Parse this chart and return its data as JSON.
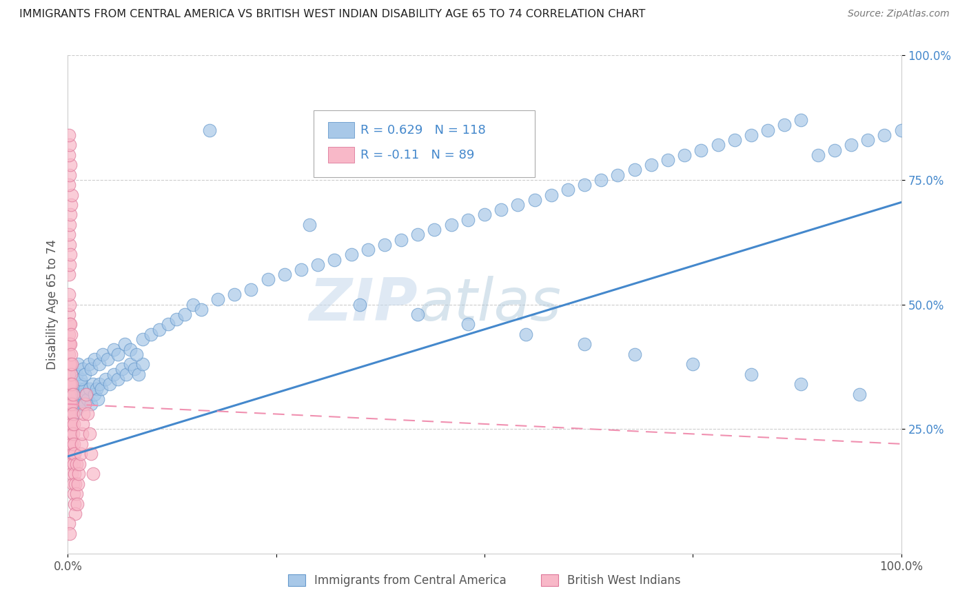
{
  "title": "IMMIGRANTS FROM CENTRAL AMERICA VS BRITISH WEST INDIAN DISABILITY AGE 65 TO 74 CORRELATION CHART",
  "source": "Source: ZipAtlas.com",
  "ylabel": "Disability Age 65 to 74",
  "watermark": "ZIPAtlas",
  "series1": {
    "label": "Immigrants from Central America",
    "color": "#a8c8e8",
    "edge_color": "#6699cc",
    "R": 0.629,
    "N": 118,
    "x": [
      0.001,
      0.002,
      0.003,
      0.004,
      0.005,
      0.006,
      0.007,
      0.008,
      0.009,
      0.01,
      0.011,
      0.012,
      0.013,
      0.014,
      0.015,
      0.016,
      0.017,
      0.018,
      0.019,
      0.02,
      0.022,
      0.024,
      0.026,
      0.028,
      0.03,
      0.032,
      0.034,
      0.036,
      0.038,
      0.04,
      0.045,
      0.05,
      0.055,
      0.06,
      0.065,
      0.07,
      0.075,
      0.08,
      0.085,
      0.09,
      0.01,
      0.012,
      0.015,
      0.018,
      0.02,
      0.025,
      0.028,
      0.032,
      0.038,
      0.042,
      0.048,
      0.055,
      0.06,
      0.068,
      0.075,
      0.082,
      0.09,
      0.1,
      0.11,
      0.12,
      0.13,
      0.14,
      0.15,
      0.16,
      0.18,
      0.2,
      0.22,
      0.24,
      0.26,
      0.28,
      0.3,
      0.32,
      0.34,
      0.36,
      0.38,
      0.4,
      0.42,
      0.44,
      0.46,
      0.48,
      0.5,
      0.52,
      0.54,
      0.56,
      0.58,
      0.6,
      0.62,
      0.64,
      0.66,
      0.68,
      0.7,
      0.72,
      0.74,
      0.76,
      0.78,
      0.8,
      0.82,
      0.84,
      0.86,
      0.88,
      0.9,
      0.92,
      0.94,
      0.96,
      0.98,
      1.0,
      0.35,
      0.42,
      0.48,
      0.55,
      0.62,
      0.68,
      0.75,
      0.82,
      0.88,
      0.95,
      0.29,
      0.17
    ],
    "y": [
      0.28,
      0.3,
      0.29,
      0.31,
      0.3,
      0.32,
      0.28,
      0.33,
      0.3,
      0.31,
      0.29,
      0.32,
      0.31,
      0.33,
      0.3,
      0.34,
      0.31,
      0.32,
      0.3,
      0.33,
      0.32,
      0.31,
      0.33,
      0.3,
      0.34,
      0.32,
      0.33,
      0.31,
      0.34,
      0.33,
      0.35,
      0.34,
      0.36,
      0.35,
      0.37,
      0.36,
      0.38,
      0.37,
      0.36,
      0.38,
      0.36,
      0.38,
      0.35,
      0.37,
      0.36,
      0.38,
      0.37,
      0.39,
      0.38,
      0.4,
      0.39,
      0.41,
      0.4,
      0.42,
      0.41,
      0.4,
      0.43,
      0.44,
      0.45,
      0.46,
      0.47,
      0.48,
      0.5,
      0.49,
      0.51,
      0.52,
      0.53,
      0.55,
      0.56,
      0.57,
      0.58,
      0.59,
      0.6,
      0.61,
      0.62,
      0.63,
      0.64,
      0.65,
      0.66,
      0.67,
      0.68,
      0.69,
      0.7,
      0.71,
      0.72,
      0.73,
      0.74,
      0.75,
      0.76,
      0.77,
      0.78,
      0.79,
      0.8,
      0.81,
      0.82,
      0.83,
      0.84,
      0.85,
      0.86,
      0.87,
      0.8,
      0.81,
      0.82,
      0.83,
      0.84,
      0.85,
      0.5,
      0.48,
      0.46,
      0.44,
      0.42,
      0.4,
      0.38,
      0.36,
      0.34,
      0.32,
      0.66,
      0.85
    ]
  },
  "series2": {
    "label": "British West Indians",
    "color": "#f8b8c8",
    "edge_color": "#dd7799",
    "R": -0.11,
    "N": 89,
    "x": [
      0.001,
      0.001,
      0.001,
      0.001,
      0.001,
      0.001,
      0.001,
      0.001,
      0.001,
      0.001,
      0.002,
      0.002,
      0.002,
      0.002,
      0.002,
      0.002,
      0.002,
      0.002,
      0.002,
      0.003,
      0.003,
      0.003,
      0.003,
      0.003,
      0.003,
      0.003,
      0.003,
      0.004,
      0.004,
      0.004,
      0.004,
      0.004,
      0.004,
      0.004,
      0.005,
      0.005,
      0.005,
      0.005,
      0.005,
      0.005,
      0.006,
      0.006,
      0.006,
      0.006,
      0.006,
      0.007,
      0.007,
      0.007,
      0.007,
      0.008,
      0.008,
      0.008,
      0.009,
      0.009,
      0.01,
      0.01,
      0.011,
      0.012,
      0.013,
      0.014,
      0.015,
      0.016,
      0.017,
      0.018,
      0.019,
      0.02,
      0.022,
      0.024,
      0.026,
      0.028,
      0.03,
      0.001,
      0.001,
      0.002,
      0.002,
      0.003,
      0.001,
      0.002,
      0.003,
      0.004,
      0.005,
      0.001,
      0.002,
      0.003,
      0.001,
      0.002,
      0.001,
      0.002,
      0.001
    ],
    "y": [
      0.28,
      0.32,
      0.36,
      0.4,
      0.44,
      0.48,
      0.3,
      0.34,
      0.38,
      0.42,
      0.26,
      0.3,
      0.34,
      0.38,
      0.42,
      0.46,
      0.5,
      0.24,
      0.28,
      0.22,
      0.26,
      0.3,
      0.34,
      0.38,
      0.42,
      0.46,
      0.2,
      0.24,
      0.28,
      0.32,
      0.36,
      0.4,
      0.44,
      0.18,
      0.22,
      0.26,
      0.3,
      0.34,
      0.38,
      0.16,
      0.2,
      0.24,
      0.28,
      0.32,
      0.14,
      0.18,
      0.22,
      0.26,
      0.12,
      0.16,
      0.2,
      0.1,
      0.14,
      0.08,
      0.12,
      0.18,
      0.1,
      0.14,
      0.16,
      0.18,
      0.2,
      0.22,
      0.24,
      0.26,
      0.28,
      0.3,
      0.32,
      0.28,
      0.24,
      0.2,
      0.16,
      0.52,
      0.56,
      0.58,
      0.62,
      0.6,
      0.64,
      0.66,
      0.68,
      0.7,
      0.72,
      0.74,
      0.76,
      0.78,
      0.8,
      0.82,
      0.06,
      0.04,
      0.84
    ]
  },
  "trend1_intercept": 0.195,
  "trend1_slope": 0.51,
  "trend2_intercept": 0.3,
  "trend2_slope": -0.08,
  "xlim": [
    0.0,
    1.0
  ],
  "ylim": [
    0.0,
    1.0
  ],
  "x_ticks": [
    0.0,
    0.25,
    0.5,
    0.75,
    1.0
  ],
  "x_tick_labels": [
    "0.0%",
    "",
    "",
    "",
    "100.0%"
  ],
  "y_ticks": [
    0.25,
    0.5,
    0.75,
    1.0
  ],
  "y_tick_labels": [
    "25.0%",
    "50.0%",
    "75.0%",
    "100.0%"
  ],
  "grid_color": "#cccccc",
  "background_color": "#ffffff",
  "trend1_color": "#4488cc",
  "trend2_color": "#f090b0",
  "title_color": "#222222",
  "stats_color": "#4488cc"
}
